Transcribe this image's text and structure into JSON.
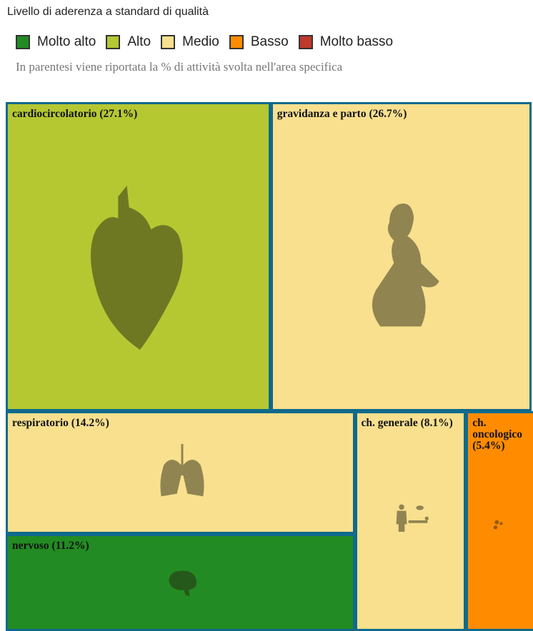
{
  "chart_data": {
    "type": "treemap",
    "title": "Livello di aderenza a standard di qualità",
    "subtitle": "In parentesi viene riportata la % di attività svolta nell'area specifica",
    "legend": [
      {
        "name": "Molto alto",
        "color": "#238b23"
      },
      {
        "name": "Alto",
        "color": "#b5c832"
      },
      {
        "name": "Medio",
        "color": "#f8e08e"
      },
      {
        "name": "Basso",
        "color": "#ff8c00"
      },
      {
        "name": "Molto basso",
        "color": "#c0392b"
      }
    ],
    "categories": [
      "cardiocircolatorio",
      "gravidanza e parto",
      "respiratorio",
      "nervoso",
      "ch. generale",
      "ch. oncologico"
    ],
    "values": [
      27.1,
      26.7,
      14.2,
      11.2,
      8.1,
      5.4
    ],
    "value_labels": [
      "(27.1%)",
      "(26.7%)",
      "(14.2%)",
      "(11.2%)",
      "(8.1%)",
      "(5.4%)"
    ],
    "colors": [
      "#b5c832",
      "#f8e08e",
      "#f8e08e",
      "#238b23",
      "#f8e08e",
      "#ff8c00"
    ]
  }
}
